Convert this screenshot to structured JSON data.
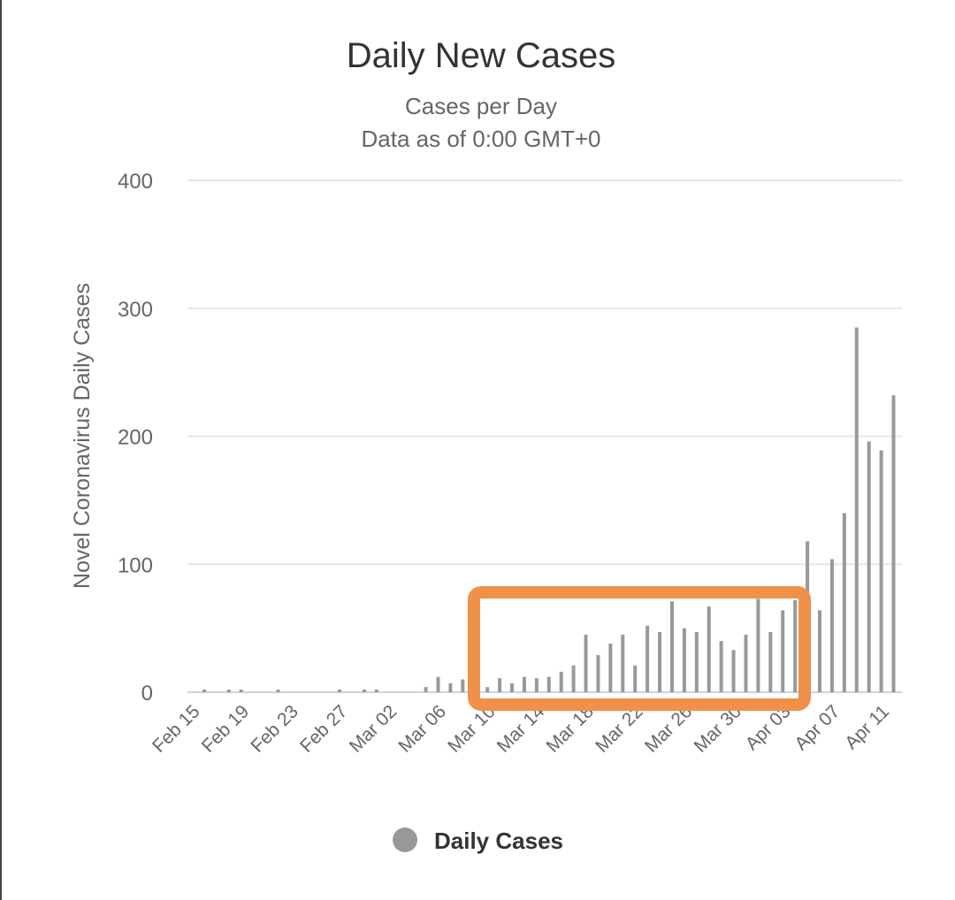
{
  "chart_data": {
    "type": "bar",
    "title": "Daily New Cases",
    "subtitle": [
      "Cases per Day",
      "Data as of 0:00 GMT+0"
    ],
    "xlabel": "",
    "ylabel": "Novel Coronavirus Daily Cases",
    "ylim": [
      0,
      400
    ],
    "yticks": [
      "0",
      "100",
      "200",
      "300",
      "400"
    ],
    "ytick_values": [
      0,
      100,
      200,
      300,
      400
    ],
    "grid": true,
    "start_date": "Feb 15",
    "xtick_labels": [
      "Feb 15",
      "Feb 19",
      "Feb 23",
      "Feb 27",
      "Mar 02",
      "Mar 06",
      "Mar 10",
      "Mar 14",
      "Mar 18",
      "Mar 22",
      "Mar 26",
      "Mar 30",
      "Apr 03",
      "Apr 07",
      "Apr 11"
    ],
    "xtick_every_days": 4,
    "series": [
      {
        "name": "Daily Cases",
        "color": "#999999",
        "values": [
          1,
          0,
          1,
          1,
          0,
          0,
          1,
          0,
          0,
          0,
          0,
          1,
          0,
          1,
          1,
          0,
          0,
          0,
          4,
          12,
          7,
          10,
          10,
          4,
          11,
          7,
          12,
          11,
          12,
          16,
          21,
          45,
          29,
          38,
          45,
          21,
          52,
          47,
          71,
          50,
          47,
          67,
          40,
          33,
          45,
          73,
          47,
          64,
          72,
          118,
          64,
          104,
          140,
          285,
          196,
          189,
          232
        ]
      }
    ],
    "legend": {
      "placement": "bottom",
      "label": "Daily Cases",
      "color": "#999999"
    },
    "annotation": {
      "type": "highlight-box",
      "from": "Mar 09",
      "to": "Apr 03",
      "color": "#F0914A"
    }
  }
}
